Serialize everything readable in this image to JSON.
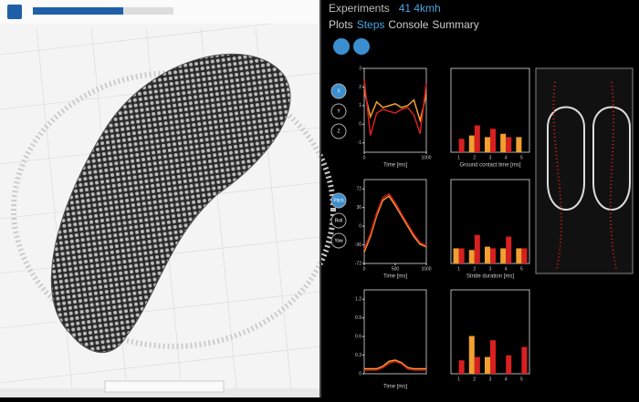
{
  "header": {
    "label": "Experiments",
    "name": "41 4kmh"
  },
  "tabs": {
    "items": [
      "Plots",
      "Steps",
      "Console",
      "Summary"
    ],
    "active": 1
  },
  "buttons": {
    "axes": [
      "X",
      "Y",
      "Z"
    ],
    "rotations": [
      "Pitch",
      "Roll",
      "Yaw"
    ],
    "selected_axis": 0,
    "selected_rotation": 0
  },
  "charts": [
    {
      "type": "line",
      "xlabel": "Time [ms]",
      "xlim": [
        0,
        1000
      ],
      "xticks": [
        0,
        1000
      ],
      "ylim": [
        -1.5,
        3
      ],
      "yticks": [
        -1,
        0,
        1,
        2,
        3
      ],
      "series": [
        {
          "color": "#f0a030",
          "x": [
            0,
            100,
            200,
            300,
            400,
            500,
            600,
            700,
            800,
            900,
            1000
          ],
          "values": [
            1.8,
            0.4,
            1.2,
            0.9,
            1.0,
            1.1,
            0.9,
            1.0,
            1.3,
            0.2,
            1.6
          ]
        },
        {
          "color": "#d82020",
          "x": [
            0,
            100,
            200,
            300,
            400,
            500,
            600,
            700,
            800,
            900,
            1000
          ],
          "values": [
            2.4,
            -0.6,
            0.6,
            0.8,
            0.7,
            0.6,
            0.8,
            0.9,
            0.5,
            -0.5,
            2.2
          ]
        }
      ]
    },
    {
      "type": "bar",
      "xlabel": "Ground contact time [ms]",
      "categories": [
        "1",
        "2",
        "3",
        "4",
        "5"
      ],
      "ylim": [
        0,
        1
      ],
      "series": [
        {
          "color": "#f0a030",
          "values": [
            0,
            0.2,
            0.18,
            0.22,
            0.18
          ]
        },
        {
          "color": "#d82020",
          "values": [
            0.16,
            0.32,
            0.28,
            0.18,
            0
          ]
        }
      ]
    },
    {
      "type": "line",
      "xlabel": "Time [ms]",
      "xlim": [
        0,
        1000
      ],
      "xticks": [
        0,
        500,
        1000
      ],
      "ylim": [
        -72,
        90
      ],
      "yticks": [
        -72,
        -36,
        0,
        36,
        72
      ],
      "series": [
        {
          "color": "#f0a030",
          "x": [
            0,
            100,
            200,
            300,
            400,
            500,
            600,
            700,
            800,
            900,
            1000
          ],
          "values": [
            -50,
            -20,
            20,
            50,
            58,
            40,
            20,
            0,
            -20,
            -35,
            -40
          ]
        },
        {
          "color": "#d82020",
          "x": [
            0,
            100,
            200,
            300,
            400,
            500,
            600,
            700,
            800,
            900,
            1000
          ],
          "values": [
            -45,
            -15,
            25,
            55,
            62,
            45,
            24,
            4,
            -16,
            -32,
            -38
          ]
        }
      ]
    },
    {
      "type": "bar",
      "xlabel": "Stride duration [ms]",
      "categories": [
        "1",
        "2",
        "3",
        "4",
        "5"
      ],
      "ylim": [
        0,
        1
      ],
      "series": [
        {
          "color": "#f0a030",
          "values": [
            0.18,
            0.16,
            0.2,
            0.18,
            0.18
          ]
        },
        {
          "color": "#d82020",
          "values": [
            0.18,
            0.34,
            0.18,
            0.32,
            0.18
          ]
        }
      ]
    },
    {
      "type": "line",
      "xlabel": "Time [ms]",
      "xlim": [
        0,
        1000
      ],
      "xticks": [],
      "ylim": [
        0,
        1.35
      ],
      "yticks": [
        0,
        0.3,
        0.6,
        0.9,
        1.2
      ],
      "series": [
        {
          "color": "#f0a030",
          "x": [
            0,
            200,
            300,
            400,
            500,
            600,
            700,
            800,
            1000
          ],
          "values": [
            0.08,
            0.08,
            0.12,
            0.2,
            0.22,
            0.18,
            0.1,
            0.08,
            0.08
          ]
        },
        {
          "color": "#d82020",
          "x": [
            0,
            200,
            300,
            400,
            500,
            600,
            700,
            800,
            1000
          ],
          "values": [
            0.06,
            0.06,
            0.1,
            0.17,
            0.2,
            0.16,
            0.08,
            0.06,
            0.06
          ]
        }
      ]
    },
    {
      "type": "bar",
      "categories": [
        "1",
        "2",
        "3",
        "4",
        "5"
      ],
      "ylim": [
        0,
        1
      ],
      "series": [
        {
          "color": "#f0a030",
          "values": [
            0,
            0.45,
            0.2,
            0,
            0
          ]
        },
        {
          "color": "#d82020",
          "values": [
            0.16,
            0.2,
            0.4,
            0.22,
            0.32
          ]
        }
      ]
    }
  ]
}
